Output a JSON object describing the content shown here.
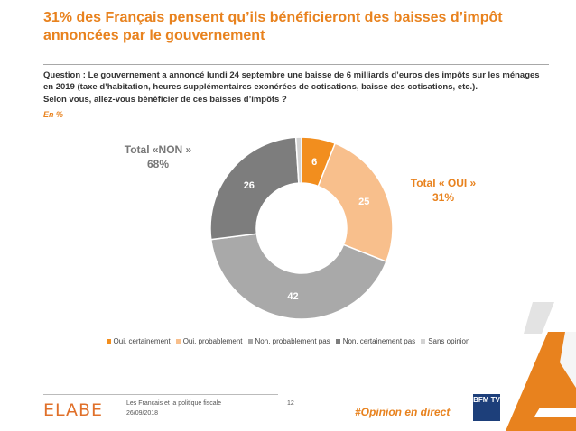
{
  "title": "31% des Français pensent qu’ils bénéficieront des baisses d’impôt annoncées par le gouvernement",
  "question": {
    "line1": "Question : Le gouvernement a annoncé lundi 24 septembre une baisse de 6 milliards d’euros des impôts sur les ménages en 2019 (taxe d’habitation, heures supplémentaires exonérées de cotisations, baisse des cotisations, etc.).",
    "line2": "Selon vous, allez-vous bénéficier de ces baisses d’impôts ?"
  },
  "unit": "En %",
  "totals": {
    "non_label": "Total «NON »",
    "non_value": "68%",
    "oui_label": "Total « OUI »",
    "oui_value": "31%"
  },
  "chart_data": {
    "type": "pie",
    "variant": "donut",
    "categories": [
      "Oui, certainement",
      "Oui, probablement",
      "Non, probablement pas",
      "Non, certainement pas",
      "Sans opinion"
    ],
    "values": [
      6,
      25,
      42,
      26,
      1
    ],
    "colors": [
      "#f28e1e",
      "#f8bf8c",
      "#a9a9a9",
      "#7d7d7d",
      "#d3d3d3"
    ],
    "label_colors": [
      "#ffffff",
      "#ffffff",
      "#ffffff",
      "#ffffff",
      "#ffffff"
    ],
    "show_labels": [
      true,
      true,
      true,
      true,
      false
    ],
    "legend_position": "bottom"
  },
  "footer": {
    "logo": "ELABE",
    "line1": "Les Français et la politique fiscale",
    "line2": "26/09/2018",
    "page": "12",
    "hashtag": "#Opinion en direct",
    "partner": "BFM TV"
  }
}
